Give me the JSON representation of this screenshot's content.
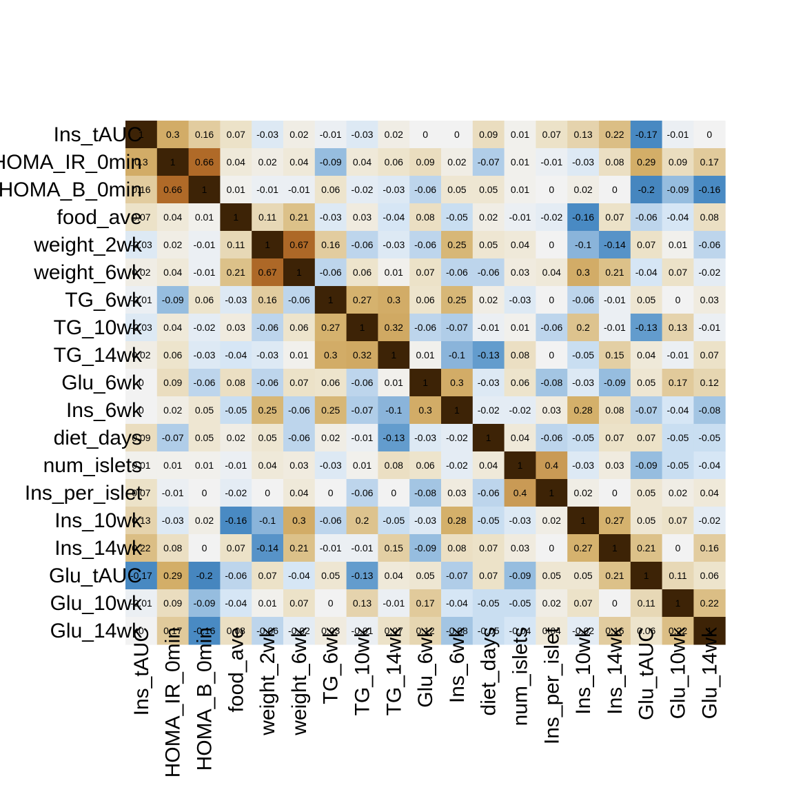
{
  "chart_data": {
    "type": "heatmap",
    "labels": [
      "Ins_tAUC",
      "HOMA_IR_0min",
      "HOMA_B_0min",
      "food_ave",
      "weight_2wk",
      "weight_6wk",
      "TG_6wk",
      "TG_10wk",
      "TG_14wk",
      "Glu_6wk",
      "Ins_6wk",
      "diet_days",
      "num_islets",
      "Ins_per_islet",
      "Ins_10wk",
      "Ins_14wk",
      "Glu_tAUC",
      "Glu_10wk",
      "Glu_14wk"
    ],
    "matrix": [
      [
        1,
        0.3,
        0.16,
        0.07,
        -0.03,
        0.02,
        -0.01,
        -0.03,
        0.02,
        0,
        0,
        0.09,
        0.01,
        0.07,
        0.13,
        0.22,
        -0.17,
        -0.01,
        0
      ],
      [
        0.3,
        1,
        0.66,
        0.04,
        0.02,
        0.04,
        -0.09,
        0.04,
        0.06,
        0.09,
        0.02,
        -0.07,
        0.01,
        -0.01,
        -0.03,
        0.08,
        0.29,
        0.09,
        0.17
      ],
      [
        0.16,
        0.66,
        1,
        0.01,
        -0.01,
        -0.01,
        0.06,
        -0.02,
        -0.03,
        -0.06,
        0.05,
        0.05,
        0.01,
        0,
        0.02,
        0,
        -0.2,
        -0.09,
        -0.16
      ],
      [
        0.07,
        0.04,
        0.01,
        1,
        0.11,
        0.21,
        -0.03,
        0.03,
        -0.04,
        0.08,
        -0.05,
        0.02,
        -0.01,
        -0.02,
        -0.16,
        0.07,
        -0.06,
        -0.04,
        0.08
      ],
      [
        -0.03,
        0.02,
        -0.01,
        0.11,
        1,
        0.67,
        0.16,
        -0.06,
        -0.03,
        -0.06,
        0.25,
        0.05,
        0.04,
        0,
        -0.1,
        -0.14,
        0.07,
        0.01,
        -0.06
      ],
      [
        0.02,
        0.04,
        -0.01,
        0.21,
        0.67,
        1,
        -0.06,
        0.06,
        0.01,
        0.07,
        -0.06,
        -0.06,
        0.03,
        0.04,
        0.3,
        0.21,
        -0.04,
        0.07,
        -0.02
      ],
      [
        -0.01,
        -0.09,
        0.06,
        -0.03,
        0.16,
        -0.06,
        1,
        0.27,
        0.3,
        0.06,
        0.25,
        0.02,
        -0.03,
        0,
        -0.06,
        -0.01,
        0.05,
        0,
        0.03
      ],
      [
        -0.03,
        0.04,
        -0.02,
        0.03,
        -0.06,
        0.06,
        0.27,
        1,
        0.32,
        -0.06,
        -0.07,
        -0.01,
        0.01,
        -0.06,
        0.2,
        -0.01,
        -0.13,
        0.13,
        -0.01
      ],
      [
        0.02,
        0.06,
        -0.03,
        -0.04,
        -0.03,
        0.01,
        0.3,
        0.32,
        1,
        0.01,
        -0.1,
        -0.13,
        0.08,
        0,
        -0.05,
        0.15,
        0.04,
        -0.01,
        0.07
      ],
      [
        0,
        0.09,
        -0.06,
        0.08,
        -0.06,
        0.07,
        0.06,
        -0.06,
        0.01,
        1,
        0.3,
        -0.03,
        0.06,
        -0.08,
        -0.03,
        -0.09,
        0.05,
        0.17,
        0.12
      ],
      [
        0,
        0.02,
        0.05,
        -0.05,
        0.25,
        -0.06,
        0.25,
        -0.07,
        -0.1,
        0.3,
        1,
        -0.02,
        -0.02,
        0.03,
        0.28,
        0.08,
        -0.07,
        -0.04,
        -0.08
      ],
      [
        0.09,
        -0.07,
        0.05,
        0.02,
        0.05,
        -0.06,
        0.02,
        -0.01,
        -0.13,
        -0.03,
        -0.02,
        1,
        0.04,
        -0.06,
        -0.05,
        0.07,
        0.07,
        -0.05,
        -0.05
      ],
      [
        0.01,
        0.01,
        0.01,
        -0.01,
        0.04,
        0.03,
        -0.03,
        0.01,
        0.08,
        0.06,
        -0.02,
        0.04,
        1,
        0.4,
        -0.03,
        0.03,
        -0.09,
        -0.05,
        -0.04
      ],
      [
        0.07,
        -0.01,
        0,
        -0.02,
        0,
        0.04,
        0,
        -0.06,
        0,
        -0.08,
        0.03,
        -0.06,
        0.4,
        1,
        0.02,
        0,
        0.05,
        0.02,
        0.04
      ],
      [
        0.13,
        -0.03,
        0.02,
        -0.16,
        -0.1,
        0.3,
        -0.06,
        0.2,
        -0.05,
        -0.03,
        0.28,
        -0.05,
        -0.03,
        0.02,
        1,
        0.27,
        0.05,
        0.07,
        -0.02
      ],
      [
        0.22,
        0.08,
        0,
        0.07,
        -0.14,
        0.21,
        -0.01,
        -0.01,
        0.15,
        -0.09,
        0.08,
        0.07,
        0.03,
        0,
        0.27,
        1,
        0.21,
        0,
        0.16
      ],
      [
        -0.17,
        0.29,
        -0.2,
        -0.06,
        0.07,
        -0.04,
        0.05,
        -0.13,
        0.04,
        0.05,
        -0.07,
        0.07,
        -0.09,
        0.05,
        0.05,
        0.21,
        1,
        0.11,
        0.06
      ],
      [
        -0.01,
        0.09,
        -0.09,
        -0.04,
        0.01,
        0.07,
        0,
        0.13,
        -0.01,
        0.17,
        -0.04,
        -0.05,
        -0.05,
        0.02,
        0.07,
        0,
        0.11,
        1,
        0.22
      ],
      [
        0,
        0.17,
        -0.16,
        0.08,
        -0.06,
        -0.02,
        0.03,
        -0.01,
        0.07,
        0.12,
        -0.08,
        -0.05,
        -0.04,
        0.04,
        -0.02,
        0.16,
        0.06,
        0.22,
        1
      ]
    ],
    "title": "",
    "xlabel": "",
    "ylabel": "",
    "colors": {
      "strong_negative": "#08306b",
      "mid_negative": "#4a8bc4",
      "weak_negative": "#d6e6f5",
      "zero": "#f2f2f2",
      "weak_positive": "#ede4cc",
      "mid_positive": "#d4b06a",
      "high_positive": "#b06a28",
      "strong_positive": "#3d2306"
    }
  }
}
